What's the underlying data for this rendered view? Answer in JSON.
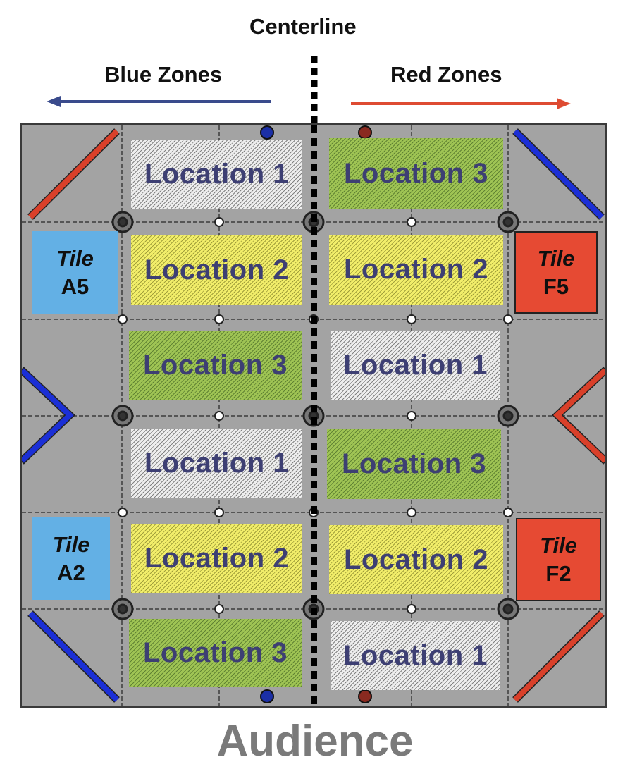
{
  "header": {
    "centerline": "Centerline",
    "blue_zones": "Blue Zones",
    "red_zones": "Red Zones"
  },
  "colors": {
    "blue_arrow": "#3a4b8c",
    "red_arrow": "#de4b32",
    "blue_tape": "#1b2fd6",
    "red_tape": "#d9402a",
    "tile_blue": "#63b0e5",
    "tile_red": "#e64a33",
    "location_1": "#eeeeee",
    "location_2": "#f2ee6a",
    "location_3": "#9fc454",
    "location_text": "#3d3f73",
    "field": "#a3a3a3"
  },
  "locations": {
    "left": [
      "Location 1",
      "Location 2",
      "Location 3",
      "Location 1",
      "Location 2",
      "Location 3"
    ],
    "right": [
      "Location 3",
      "Location 2",
      "Location 1",
      "Location 3",
      "Location 2",
      "Location 1"
    ]
  },
  "tiles": {
    "a5": {
      "word": "Tile",
      "id": "A5"
    },
    "f5": {
      "word": "Tile",
      "id": "F5"
    },
    "a2": {
      "word": "Tile",
      "id": "A2"
    },
    "f2": {
      "word": "Tile",
      "id": "F2"
    }
  },
  "footer": {
    "audience": "Audience"
  }
}
